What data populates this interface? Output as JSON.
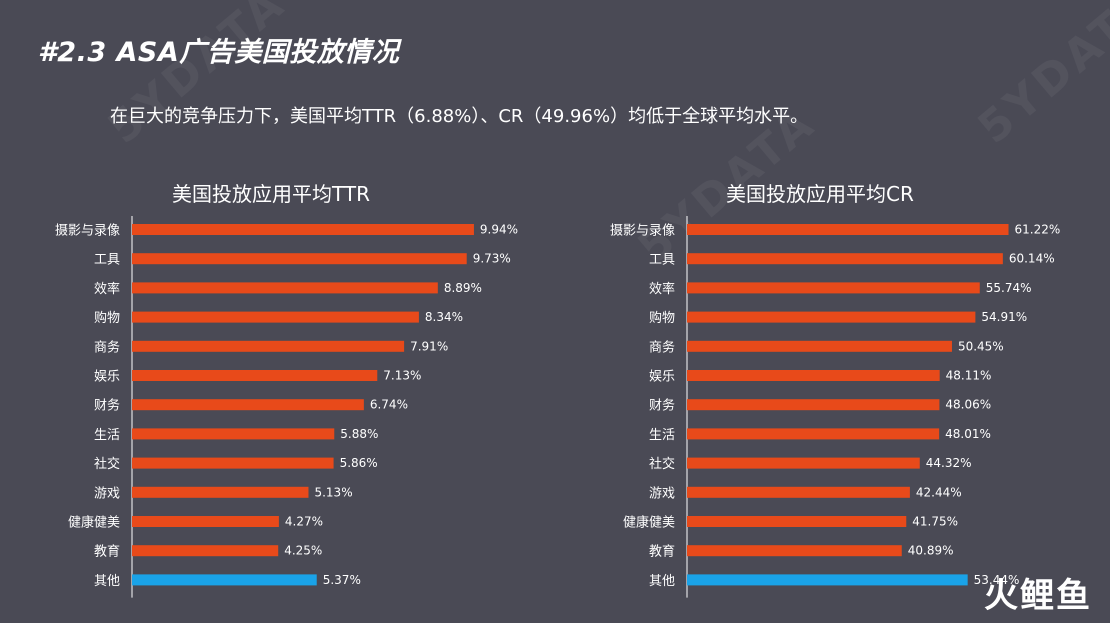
{
  "slide": {
    "title": "#2.3 ASA广告美国投放情况",
    "subtitle": "在巨大的竞争压力下，美国平均TTR（6.88%）、CR（49.96%）均低于全球平均水平。",
    "watermark": "5YDATA",
    "logo": "火鲤鱼"
  },
  "colors": {
    "bar": "#e84a1a",
    "other_bar": "#1aa3e8",
    "axis": "#ffffff",
    "background": "#4a4a55"
  },
  "chart_data": [
    {
      "type": "bar",
      "orientation": "horizontal",
      "title": "美国投放应用平均TTR",
      "categories": [
        "摄影与录像",
        "工具",
        "效率",
        "购物",
        "商务",
        "娱乐",
        "财务",
        "生活",
        "社交",
        "游戏",
        "健康健美",
        "教育",
        "其他"
      ],
      "values": [
        9.94,
        9.73,
        8.89,
        8.34,
        7.91,
        7.13,
        6.74,
        5.88,
        5.86,
        5.13,
        4.27,
        4.25,
        5.37
      ],
      "labels": [
        "9.94%",
        "9.73%",
        "8.89%",
        "8.34%",
        "7.91%",
        "7.13%",
        "6.74%",
        "5.88%",
        "5.86%",
        "5.13%",
        "4.27%",
        "4.25%",
        "5.37%"
      ],
      "highlight": "其他",
      "xlim": [
        0,
        10
      ]
    },
    {
      "type": "bar",
      "orientation": "horizontal",
      "title": "美国投放应用平均CR",
      "categories": [
        "摄影与录像",
        "工具",
        "效率",
        "购物",
        "商务",
        "娱乐",
        "财务",
        "生活",
        "社交",
        "游戏",
        "健康健美",
        "教育",
        "其他"
      ],
      "values": [
        61.22,
        60.14,
        55.74,
        54.91,
        50.45,
        48.11,
        48.06,
        48.01,
        44.32,
        42.44,
        41.75,
        40.89,
        53.44
      ],
      "labels": [
        "61.22%",
        "60.14%",
        "55.74%",
        "54.91%",
        "50.45%",
        "48.11%",
        "48.06%",
        "48.01%",
        "44.32%",
        "42.44%",
        "41.75%",
        "40.89%",
        "53.44%"
      ],
      "highlight": "其他",
      "xlim": [
        0,
        65.5
      ]
    }
  ]
}
